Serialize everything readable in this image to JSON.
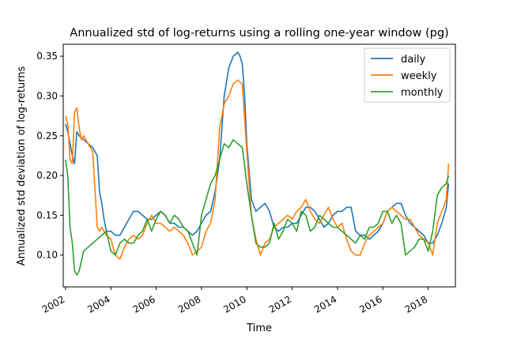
{
  "chart_data": {
    "type": "line",
    "title": "Annualized std of log-returns using a rolling one-year window (pg)",
    "xlabel": "Time",
    "ylabel": "Annualized std deviation of log-returns",
    "xlim": [
      2001.9,
      2019.2
    ],
    "ylim": [
      0.06,
      0.365
    ],
    "x_ticks": [
      2002,
      2004,
      2006,
      2008,
      2010,
      2012,
      2014,
      2016,
      2018
    ],
    "x_tick_labels": [
      "2002",
      "2004",
      "2006",
      "2008",
      "2010",
      "2012",
      "2014",
      "2016",
      "2018"
    ],
    "y_ticks": [
      0.1,
      0.15,
      0.2,
      0.25,
      0.3,
      0.35
    ],
    "y_tick_labels": [
      "0.10",
      "0.15",
      "0.20",
      "0.25",
      "0.30",
      "0.35"
    ],
    "grid": false,
    "legend_position": "top-right",
    "series": [
      {
        "name": "daily",
        "color": "#1f77b4",
        "x": [
          2002.0,
          2002.1,
          2002.2,
          2002.3,
          2002.4,
          2002.5,
          2002.6,
          2002.8,
          2003.0,
          2003.2,
          2003.4,
          2003.5,
          2003.6,
          2003.7,
          2003.8,
          2004.0,
          2004.2,
          2004.4,
          2004.6,
          2004.8,
          2005.0,
          2005.2,
          2005.4,
          2005.6,
          2005.8,
          2006.0,
          2006.2,
          2006.4,
          2006.6,
          2006.8,
          2007.0,
          2007.2,
          2007.4,
          2007.6,
          2007.8,
          2008.0,
          2008.2,
          2008.4,
          2008.6,
          2008.8,
          2009.0,
          2009.2,
          2009.4,
          2009.6,
          2009.7,
          2009.8,
          2009.9,
          2010.0,
          2010.2,
          2010.4,
          2010.6,
          2010.8,
          2011.0,
          2011.2,
          2011.4,
          2011.6,
          2011.8,
          2012.0,
          2012.2,
          2012.4,
          2012.6,
          2012.8,
          2013.0,
          2013.2,
          2013.4,
          2013.6,
          2013.8,
          2014.0,
          2014.2,
          2014.4,
          2014.6,
          2014.8,
          2015.0,
          2015.2,
          2015.4,
          2015.6,
          2015.8,
          2016.0,
          2016.2,
          2016.4,
          2016.6,
          2016.8,
          2017.0,
          2017.2,
          2017.4,
          2017.6,
          2017.8,
          2018.0,
          2018.2,
          2018.4,
          2018.6,
          2018.8,
          2018.9
        ],
        "y": [
          0.265,
          0.255,
          0.24,
          0.225,
          0.215,
          0.255,
          0.25,
          0.245,
          0.24,
          0.235,
          0.225,
          0.18,
          0.165,
          0.145,
          0.13,
          0.13,
          0.125,
          0.125,
          0.135,
          0.145,
          0.155,
          0.155,
          0.15,
          0.145,
          0.145,
          0.15,
          0.155,
          0.15,
          0.14,
          0.14,
          0.135,
          0.135,
          0.13,
          0.125,
          0.13,
          0.14,
          0.15,
          0.155,
          0.18,
          0.22,
          0.3,
          0.335,
          0.35,
          0.355,
          0.35,
          0.34,
          0.3,
          0.24,
          0.17,
          0.155,
          0.16,
          0.165,
          0.155,
          0.135,
          0.13,
          0.135,
          0.135,
          0.14,
          0.14,
          0.15,
          0.16,
          0.16,
          0.155,
          0.145,
          0.135,
          0.14,
          0.15,
          0.155,
          0.155,
          0.16,
          0.16,
          0.13,
          0.125,
          0.125,
          0.12,
          0.125,
          0.13,
          0.14,
          0.155,
          0.16,
          0.165,
          0.165,
          0.15,
          0.14,
          0.135,
          0.13,
          0.125,
          0.115,
          0.115,
          0.125,
          0.14,
          0.16,
          0.19
        ]
      },
      {
        "name": "weekly",
        "color": "#ff7f0e",
        "x": [
          2002.0,
          2002.1,
          2002.2,
          2002.3,
          2002.4,
          2002.5,
          2002.6,
          2002.7,
          2002.8,
          2003.0,
          2003.2,
          2003.4,
          2003.5,
          2003.6,
          2003.8,
          2004.0,
          2004.2,
          2004.4,
          2004.6,
          2004.8,
          2005.0,
          2005.2,
          2005.4,
          2005.6,
          2005.8,
          2006.0,
          2006.2,
          2006.4,
          2006.6,
          2006.8,
          2007.0,
          2007.2,
          2007.4,
          2007.6,
          2007.8,
          2008.0,
          2008.2,
          2008.4,
          2008.6,
          2008.8,
          2009.0,
          2009.2,
          2009.4,
          2009.6,
          2009.8,
          2010.0,
          2010.2,
          2010.4,
          2010.6,
          2010.8,
          2011.0,
          2011.2,
          2011.4,
          2011.6,
          2011.8,
          2012.0,
          2012.2,
          2012.4,
          2012.6,
          2012.8,
          2013.0,
          2013.2,
          2013.4,
          2013.6,
          2013.8,
          2014.0,
          2014.2,
          2014.4,
          2014.6,
          2014.8,
          2015.0,
          2015.2,
          2015.4,
          2015.6,
          2015.8,
          2016.0,
          2016.2,
          2016.4,
          2016.6,
          2016.8,
          2017.0,
          2017.2,
          2017.4,
          2017.6,
          2017.8,
          2018.0,
          2018.2,
          2018.4,
          2018.6,
          2018.8,
          2018.9
        ],
        "y": [
          0.275,
          0.265,
          0.22,
          0.215,
          0.28,
          0.285,
          0.26,
          0.245,
          0.25,
          0.24,
          0.23,
          0.135,
          0.13,
          0.135,
          0.125,
          0.12,
          0.1,
          0.095,
          0.11,
          0.12,
          0.125,
          0.12,
          0.125,
          0.14,
          0.15,
          0.14,
          0.14,
          0.135,
          0.13,
          0.135,
          0.13,
          0.125,
          0.115,
          0.1,
          0.105,
          0.11,
          0.13,
          0.14,
          0.17,
          0.26,
          0.29,
          0.3,
          0.315,
          0.32,
          0.315,
          0.23,
          0.15,
          0.12,
          0.1,
          0.115,
          0.12,
          0.135,
          0.14,
          0.145,
          0.15,
          0.145,
          0.155,
          0.16,
          0.17,
          0.155,
          0.145,
          0.14,
          0.15,
          0.16,
          0.145,
          0.135,
          0.14,
          0.12,
          0.105,
          0.1,
          0.1,
          0.115,
          0.125,
          0.13,
          0.135,
          0.14,
          0.155,
          0.16,
          0.155,
          0.15,
          0.145,
          0.145,
          0.135,
          0.125,
          0.12,
          0.115,
          0.1,
          0.14,
          0.155,
          0.17,
          0.215
        ]
      },
      {
        "name": "monthly",
        "color": "#2ca02c",
        "x": [
          2002.0,
          2002.1,
          2002.2,
          2002.3,
          2002.4,
          2002.5,
          2002.6,
          2002.8,
          2003.0,
          2003.2,
          2003.4,
          2003.6,
          2003.8,
          2004.0,
          2004.2,
          2004.4,
          2004.6,
          2004.8,
          2005.0,
          2005.2,
          2005.4,
          2005.6,
          2005.8,
          2006.0,
          2006.2,
          2006.4,
          2006.6,
          2006.8,
          2007.0,
          2007.2,
          2007.4,
          2007.6,
          2007.8,
          2008.0,
          2008.2,
          2008.4,
          2008.6,
          2008.8,
          2009.0,
          2009.2,
          2009.4,
          2009.6,
          2009.8,
          2010.0,
          2010.2,
          2010.4,
          2010.6,
          2010.8,
          2011.0,
          2011.2,
          2011.4,
          2011.6,
          2011.8,
          2012.0,
          2012.2,
          2012.4,
          2012.6,
          2012.8,
          2013.0,
          2013.2,
          2013.4,
          2013.6,
          2013.8,
          2014.0,
          2014.2,
          2014.4,
          2014.6,
          2014.8,
          2015.0,
          2015.2,
          2015.4,
          2015.6,
          2015.8,
          2016.0,
          2016.2,
          2016.4,
          2016.6,
          2016.8,
          2017.0,
          2017.2,
          2017.4,
          2017.6,
          2017.8,
          2018.0,
          2018.2,
          2018.4,
          2018.6,
          2018.8,
          2018.9
        ],
        "y": [
          0.22,
          0.2,
          0.135,
          0.115,
          0.08,
          0.075,
          0.08,
          0.105,
          0.11,
          0.115,
          0.12,
          0.125,
          0.13,
          0.105,
          0.1,
          0.115,
          0.12,
          0.115,
          0.115,
          0.125,
          0.13,
          0.145,
          0.13,
          0.145,
          0.155,
          0.15,
          0.14,
          0.15,
          0.145,
          0.135,
          0.13,
          0.115,
          0.1,
          0.15,
          0.17,
          0.19,
          0.2,
          0.22,
          0.24,
          0.235,
          0.245,
          0.24,
          0.235,
          0.19,
          0.15,
          0.115,
          0.11,
          0.11,
          0.115,
          0.14,
          0.12,
          0.13,
          0.145,
          0.14,
          0.13,
          0.155,
          0.15,
          0.13,
          0.135,
          0.15,
          0.145,
          0.14,
          0.135,
          0.135,
          0.13,
          0.125,
          0.12,
          0.115,
          0.125,
          0.12,
          0.135,
          0.135,
          0.14,
          0.155,
          0.155,
          0.14,
          0.15,
          0.14,
          0.1,
          0.105,
          0.11,
          0.12,
          0.12,
          0.105,
          0.13,
          0.175,
          0.185,
          0.19,
          0.2
        ]
      }
    ]
  }
}
